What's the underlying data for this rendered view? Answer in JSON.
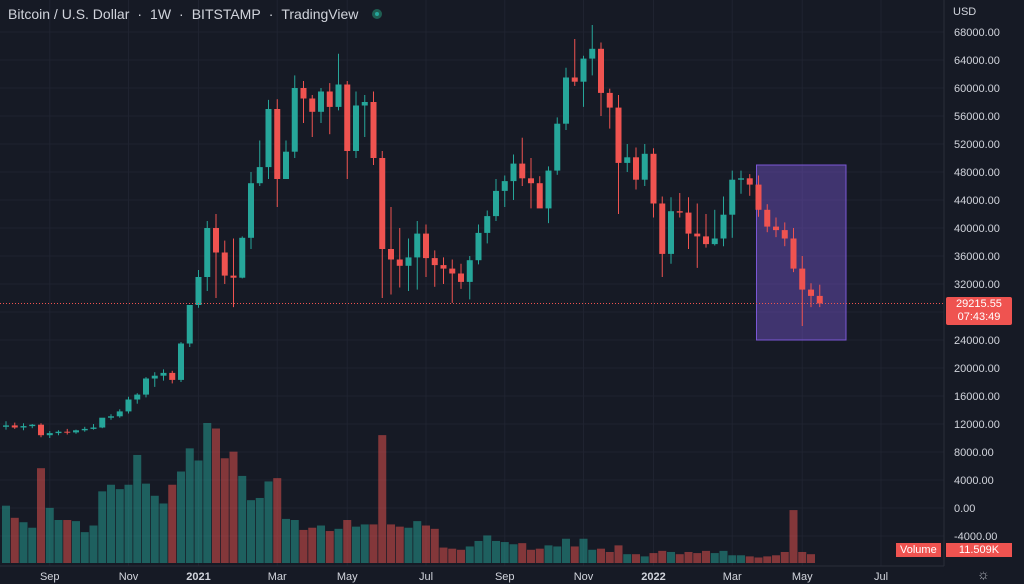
{
  "header": {
    "symbol": "Bitcoin / U.S. Dollar",
    "interval": "1W",
    "exchange": "BITSTAMP",
    "provider": "TradingView",
    "currency": "USD"
  },
  "price_badge": {
    "price": "29215.55",
    "countdown": "07:43:49"
  },
  "volume_badge": {
    "label": "Volume",
    "value": "11.509K"
  },
  "colors": {
    "up": "#26a69a",
    "down": "#ef5350",
    "background": "#161a25",
    "highlight": "#7b57d6"
  },
  "chart_data": {
    "type": "candlestick",
    "title": "Bitcoin / U.S. Dollar · 1W · BITSTAMP",
    "y_axis": {
      "ticks": [
        "68000.00",
        "64000.00",
        "60000.00",
        "56000.00",
        "52000.00",
        "48000.00",
        "44000.00",
        "40000.00",
        "36000.00",
        "32000.00",
        "28000.00",
        "24000.00",
        "20000.00",
        "16000.00",
        "12000.00",
        "8000.00",
        "4000.00",
        "0.00",
        "-4000.00"
      ],
      "range": [
        -4000,
        68000
      ]
    },
    "x_axis": {
      "ticks": [
        "Sep",
        "Nov",
        "2021",
        "Mar",
        "May",
        "Jul",
        "Sep",
        "Nov",
        "2022",
        "Mar",
        "May",
        "Jul"
      ],
      "tick_week_index": [
        5,
        14,
        22,
        31,
        39,
        48,
        57,
        66,
        74,
        83,
        91,
        100
      ]
    },
    "current_price": 29215.55,
    "highlight_week_range": [
      86,
      96
    ],
    "highlight_price_range": [
      24000,
      49000
    ],
    "candles": [
      [
        11600,
        12400,
        11200,
        11800
      ],
      [
        11800,
        12200,
        11300,
        11500
      ],
      [
        11500,
        12100,
        11100,
        11700
      ],
      [
        11700,
        12000,
        11400,
        11900
      ],
      [
        11900,
        12100,
        10100,
        10400
      ],
      [
        10400,
        11000,
        10000,
        10700
      ],
      [
        10700,
        11100,
        10400,
        10900
      ],
      [
        10900,
        11300,
        10500,
        10800
      ],
      [
        10800,
        11200,
        10600,
        11100
      ],
      [
        11100,
        11600,
        10900,
        11300
      ],
      [
        11300,
        12000,
        11200,
        11500
      ],
      [
        11500,
        12400,
        11400,
        12900
      ],
      [
        12900,
        13400,
        12600,
        13100
      ],
      [
        13100,
        14100,
        12900,
        13800
      ],
      [
        13800,
        15900,
        13500,
        15500
      ],
      [
        15500,
        16400,
        14900,
        16200
      ],
      [
        16200,
        18700,
        15800,
        18500
      ],
      [
        18500,
        19400,
        17300,
        18900
      ],
      [
        18900,
        19800,
        18200,
        19300
      ],
      [
        19300,
        19600,
        17800,
        18300
      ],
      [
        18300,
        23700,
        18000,
        23500
      ],
      [
        23500,
        29000,
        23000,
        29000
      ],
      [
        29000,
        34000,
        28600,
        33000
      ],
      [
        33000,
        41000,
        31000,
        40000
      ],
      [
        40000,
        42000,
        30000,
        36500
      ],
      [
        36500,
        38200,
        32000,
        33200
      ],
      [
        33200,
        38500,
        28700,
        32900
      ],
      [
        32900,
        38800,
        32800,
        38600
      ],
      [
        38600,
        48000,
        37000,
        46400
      ],
      [
        46400,
        52500,
        46000,
        48700
      ],
      [
        48700,
        58300,
        47000,
        57000
      ],
      [
        57000,
        58400,
        43000,
        47000
      ],
      [
        47000,
        52500,
        47000,
        50900
      ],
      [
        50900,
        61800,
        50000,
        60000
      ],
      [
        60000,
        61000,
        55000,
        58500
      ],
      [
        58500,
        59000,
        53000,
        56600
      ],
      [
        56600,
        60000,
        55000,
        59500
      ],
      [
        59500,
        60700,
        53400,
        57300
      ],
      [
        57300,
        64900,
        56800,
        60500
      ],
      [
        60500,
        61000,
        47000,
        51000
      ],
      [
        51000,
        59500,
        50000,
        57500
      ],
      [
        57500,
        59000,
        53000,
        58000
      ],
      [
        58000,
        59500,
        49000,
        50000
      ],
      [
        50000,
        51000,
        30000,
        37000
      ],
      [
        37000,
        43000,
        30500,
        35500
      ],
      [
        35500,
        40000,
        31500,
        34600
      ],
      [
        34600,
        38500,
        31000,
        35800
      ],
      [
        35800,
        41000,
        31200,
        39200
      ],
      [
        39200,
        40500,
        33000,
        35700
      ],
      [
        35700,
        36800,
        31600,
        34700
      ],
      [
        34700,
        35800,
        32000,
        34200
      ],
      [
        34200,
        35500,
        29300,
        33500
      ],
      [
        33500,
        34900,
        31300,
        32300
      ],
      [
        32300,
        36000,
        29800,
        35400
      ],
      [
        35400,
        40500,
        34800,
        39300
      ],
      [
        39300,
        42500,
        37800,
        41700
      ],
      [
        41700,
        47000,
        41000,
        45300
      ],
      [
        45300,
        47500,
        43000,
        46700
      ],
      [
        46700,
        50500,
        44000,
        49200
      ],
      [
        49200,
        52900,
        46000,
        47100
      ],
      [
        47100,
        50000,
        42800,
        46400
      ],
      [
        46400,
        47400,
        43500,
        42800
      ],
      [
        42800,
        48800,
        40700,
        48200
      ],
      [
        48200,
        55800,
        47600,
        54900
      ],
      [
        54900,
        62900,
        54000,
        61500
      ],
      [
        61500,
        67000,
        60300,
        60900
      ],
      [
        60900,
        64600,
        57300,
        64200
      ],
      [
        64200,
        69000,
        61800,
        65600
      ],
      [
        65600,
        66500,
        56000,
        59300
      ],
      [
        59300,
        59900,
        54200,
        57200
      ],
      [
        57200,
        59000,
        42000,
        49300
      ],
      [
        49300,
        52000,
        48000,
        50100
      ],
      [
        50100,
        51500,
        45500,
        46900
      ],
      [
        46900,
        52000,
        46000,
        50600
      ],
      [
        50600,
        51400,
        41500,
        43500
      ],
      [
        43500,
        44500,
        33000,
        36300
      ],
      [
        36300,
        44400,
        34900,
        42400
      ],
      [
        42400,
        45000,
        41500,
        42200
      ],
      [
        42200,
        44400,
        37000,
        39200
      ],
      [
        39200,
        43500,
        34300,
        38800
      ],
      [
        38800,
        42000,
        37200,
        37700
      ],
      [
        37700,
        42600,
        37500,
        38500
      ],
      [
        38500,
        44500,
        37400,
        41900
      ],
      [
        41900,
        48200,
        38600,
        46900
      ],
      [
        46900,
        48200,
        44900,
        47100
      ],
      [
        47100,
        47700,
        44600,
        46200
      ],
      [
        46200,
        47500,
        41600,
        42600
      ],
      [
        42600,
        43400,
        39400,
        40200
      ],
      [
        40200,
        41500,
        38700,
        39700
      ],
      [
        39700,
        40800,
        37400,
        38500
      ],
      [
        38500,
        40000,
        33700,
        34200
      ],
      [
        34200,
        36000,
        26000,
        31200
      ],
      [
        31200,
        32100,
        28700,
        30300
      ],
      [
        30300,
        31900,
        28700,
        29215
      ]
    ],
    "volumes": [
      5200,
      4100,
      3700,
      3200,
      8600,
      5000,
      3900,
      3900,
      3800,
      2800,
      3400,
      6500,
      7100,
      6700,
      7100,
      9800,
      7200,
      6100,
      5400,
      7100,
      8300,
      10400,
      9300,
      12700,
      12200,
      9500,
      10100,
      7900,
      5700,
      5900,
      7400,
      7700,
      4000,
      3900,
      3000,
      3200,
      3400,
      2900,
      3100,
      3900,
      3300,
      3500,
      3500,
      11600,
      3500,
      3300,
      3200,
      3800,
      3400,
      3100,
      1400,
      1300,
      1200,
      1500,
      2000,
      2500,
      2000,
      1900,
      1700,
      1800,
      1200,
      1300,
      1600,
      1500,
      2200,
      1500,
      2200,
      1200,
      1300,
      1000,
      1600,
      800,
      800,
      600,
      900,
      1100,
      1000,
      800,
      1000,
      900,
      1100,
      900,
      1100,
      700,
      700,
      600,
      500,
      600,
      700,
      1000,
      4800,
      1000,
      800
    ]
  }
}
